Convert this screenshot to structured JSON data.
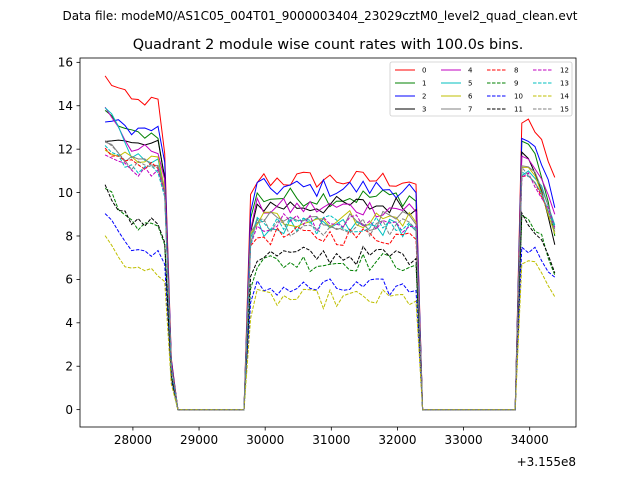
{
  "chart_data": {
    "type": "line",
    "suptitle": "Data file: modeM0/AS1C05_004T01_9000003404_23029cztM0_level2_quad_clean.evt",
    "title": "Quadrant 2 module wise count rates with 100.0s bins.",
    "xlabel": "",
    "ylabel": "",
    "x_offset_label": "+3.155e8",
    "xlim": [
      27200,
      34700
    ],
    "ylim": [
      -0.8,
      16.2
    ],
    "xticks": [
      28000,
      29000,
      30000,
      31000,
      32000,
      33000,
      34000
    ],
    "yticks": [
      0,
      2,
      4,
      6,
      8,
      10,
      12,
      14,
      16
    ],
    "legend_position": "top-right",
    "segments": [
      {
        "x_start": 27580,
        "x_end": 28480,
        "n": 10
      },
      {
        "x_start": 29780,
        "x_end": 32180,
        "n": 25
      },
      {
        "x_start": 33880,
        "x_end": 34380,
        "n": 6
      }
    ],
    "gaps": [
      {
        "x": [
          28480,
          28580,
          28680,
          29680,
          29780
        ],
        "zero_from": 28680,
        "zero_to": 29680
      },
      {
        "x": [
          32180,
          32280,
          32380,
          33780,
          33880
        ],
        "zero_from": 32380,
        "zero_to": 33780
      }
    ],
    "series": [
      {
        "name": "0",
        "color": "#ff0000",
        "dash": false,
        "levels": [
          14.2,
          10.6,
          13.2
        ],
        "start": 15.3,
        "end": 10.7,
        "drop": 11.8
      },
      {
        "name": "1",
        "color": "#008000",
        "dash": false,
        "levels": [
          12.7,
          9.8,
          12.4
        ],
        "start": 13.6,
        "end": 8.0,
        "drop": 10.6
      },
      {
        "name": "2",
        "color": "#0000ff",
        "dash": false,
        "levels": [
          12.9,
          10.2,
          12.3
        ],
        "start": 13.4,
        "end": 9.3,
        "drop": 11.4
      },
      {
        "name": "3",
        "color": "#000000",
        "dash": false,
        "levels": [
          12.2,
          9.4,
          11.8
        ],
        "start": 12.6,
        "end": 7.6,
        "drop": 10.7
      },
      {
        "name": "4",
        "color": "#c000c0",
        "dash": false,
        "levels": [
          12.0,
          9.3,
          11.6
        ],
        "start": 13.8,
        "end": 9.0,
        "drop": 10.6
      },
      {
        "name": "5",
        "color": "#00bfbf",
        "dash": false,
        "levels": [
          11.6,
          8.4,
          10.9
        ],
        "start": 14.0,
        "end": 8.5,
        "drop": 10.0
      },
      {
        "name": "6",
        "color": "#bfbf00",
        "dash": false,
        "levels": [
          11.5,
          8.8,
          11.2
        ],
        "start": 12.1,
        "end": 8.1,
        "drop": 10.2
      },
      {
        "name": "7",
        "color": "#808080",
        "dash": false,
        "levels": [
          11.4,
          8.7,
          11.1
        ],
        "start": 12.3,
        "end": 8.3,
        "drop": 10.1
      },
      {
        "name": "8",
        "color": "#ff0000",
        "dash": true,
        "levels": [
          11.3,
          8.0,
          11.0
        ],
        "start": 11.9,
        "end": 8.4,
        "drop": 10.0
      },
      {
        "name": "9",
        "color": "#008000",
        "dash": true,
        "levels": [
          8.5,
          6.8,
          8.7
        ],
        "start": 10.3,
        "end": 6.2,
        "drop": 7.6
      },
      {
        "name": "10",
        "color": "#0000ff",
        "dash": true,
        "levels": [
          7.3,
          5.6,
          7.5
        ],
        "start": 9.1,
        "end": 6.1,
        "drop": 6.7
      },
      {
        "name": "11",
        "color": "#000000",
        "dash": true,
        "levels": [
          8.6,
          7.1,
          8.8
        ],
        "start": 10.2,
        "end": 6.3,
        "drop": 7.7
      },
      {
        "name": "12",
        "color": "#c000c0",
        "dash": true,
        "levels": [
          11.0,
          8.6,
          10.8
        ],
        "start": 11.8,
        "end": 8.4,
        "drop": 9.9
      },
      {
        "name": "13",
        "color": "#00bfbf",
        "dash": true,
        "levels": [
          11.1,
          8.5,
          10.9
        ],
        "start": 12.0,
        "end": 8.4,
        "drop": 9.8
      },
      {
        "name": "14",
        "color": "#bfbf00",
        "dash": true,
        "levels": [
          6.4,
          5.1,
          6.8
        ],
        "start": 7.8,
        "end": 5.2,
        "drop": 5.9
      },
      {
        "name": "15",
        "color": "#808080",
        "dash": true,
        "levels": [
          11.2,
          8.4,
          11.0
        ],
        "start": 12.2,
        "end": 8.2,
        "drop": 10.0
      }
    ]
  }
}
